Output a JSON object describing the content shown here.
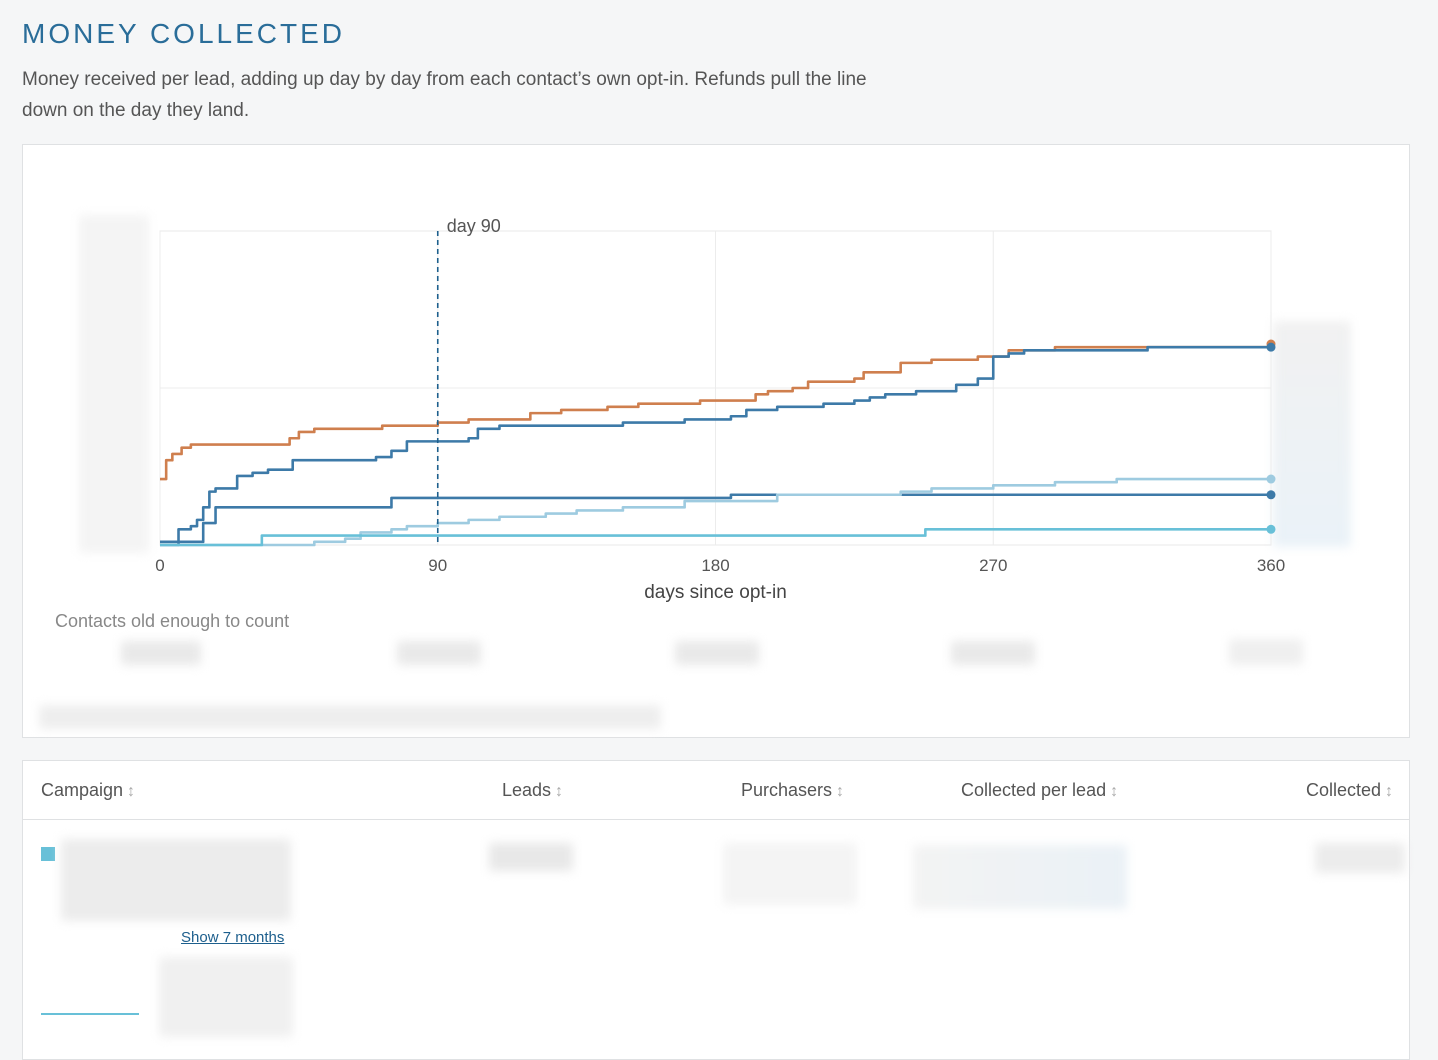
{
  "header": {
    "title": "MONEY COLLECTED",
    "description": "Money received per lead, adding up day by day from each contact’s own opt-in. Refunds pull the line down on the day they land."
  },
  "chart": {
    "marker_label": "day 90",
    "contacts_label": "Contacts old enough to count"
  },
  "colors": {
    "orange": "#cf7f4e",
    "blue": "#3d7aa8",
    "light_blue": "#9ecbe0",
    "cyan": "#68c0d8",
    "marker": "#1d5f8d"
  },
  "chart_data": {
    "type": "line",
    "xlabel": "days since opt-in",
    "ylabel": "",
    "xlim": [
      0,
      360
    ],
    "x_ticks": [
      0,
      90,
      180,
      270,
      360
    ],
    "ylim": [
      0,
      1
    ],
    "y_note": "y-axis tick labels are blurred/hidden; values given as fraction of the visible plot height",
    "grid": true,
    "vline": {
      "x": 90,
      "label": "day 90",
      "style": "dashed"
    },
    "series": [
      {
        "color": "orange",
        "points": [
          [
            0,
            0.21
          ],
          [
            2,
            0.27
          ],
          [
            4,
            0.29
          ],
          [
            7,
            0.31
          ],
          [
            10,
            0.32
          ],
          [
            20,
            0.32
          ],
          [
            40,
            0.32
          ],
          [
            42,
            0.34
          ],
          [
            45,
            0.36
          ],
          [
            50,
            0.37
          ],
          [
            70,
            0.37
          ],
          [
            72,
            0.38
          ],
          [
            90,
            0.39
          ],
          [
            100,
            0.4
          ],
          [
            120,
            0.42
          ],
          [
            130,
            0.43
          ],
          [
            145,
            0.44
          ],
          [
            155,
            0.45
          ],
          [
            175,
            0.46
          ],
          [
            190,
            0.46
          ],
          [
            193,
            0.48
          ],
          [
            197,
            0.49
          ],
          [
            205,
            0.5
          ],
          [
            210,
            0.52
          ],
          [
            225,
            0.53
          ],
          [
            228,
            0.55
          ],
          [
            240,
            0.58
          ],
          [
            250,
            0.59
          ],
          [
            265,
            0.6
          ],
          [
            275,
            0.62
          ],
          [
            290,
            0.63
          ],
          [
            360,
            0.64
          ]
        ]
      },
      {
        "color": "blue",
        "points": [
          [
            0,
            0
          ],
          [
            5,
            0
          ],
          [
            6,
            0.05
          ],
          [
            10,
            0.06
          ],
          [
            12,
            0.08
          ],
          [
            14,
            0.12
          ],
          [
            16,
            0.17
          ],
          [
            18,
            0.18
          ],
          [
            25,
            0.22
          ],
          [
            30,
            0.23
          ],
          [
            35,
            0.24
          ],
          [
            43,
            0.27
          ],
          [
            50,
            0.27
          ],
          [
            70,
            0.28
          ],
          [
            75,
            0.3
          ],
          [
            80,
            0.33
          ],
          [
            90,
            0.33
          ],
          [
            100,
            0.34
          ],
          [
            103,
            0.37
          ],
          [
            110,
            0.38
          ],
          [
            120,
            0.38
          ],
          [
            150,
            0.39
          ],
          [
            170,
            0.4
          ],
          [
            185,
            0.41
          ],
          [
            190,
            0.43
          ],
          [
            200,
            0.44
          ],
          [
            215,
            0.45
          ],
          [
            225,
            0.46
          ],
          [
            230,
            0.47
          ],
          [
            235,
            0.48
          ],
          [
            245,
            0.49
          ],
          [
            255,
            0.49
          ],
          [
            258,
            0.51
          ],
          [
            265,
            0.53
          ],
          [
            270,
            0.6
          ],
          [
            275,
            0.61
          ],
          [
            280,
            0.62
          ],
          [
            290,
            0.62
          ],
          [
            320,
            0.63
          ],
          [
            360,
            0.63
          ]
        ]
      },
      {
        "color": "blue",
        "points": [
          [
            0,
            0.01
          ],
          [
            12,
            0.01
          ],
          [
            14,
            0.07
          ],
          [
            18,
            0.12
          ],
          [
            40,
            0.12
          ],
          [
            60,
            0.12
          ],
          [
            75,
            0.15
          ],
          [
            185,
            0.16
          ],
          [
            270,
            0.16
          ],
          [
            360,
            0.16
          ]
        ]
      },
      {
        "color": "light_blue",
        "points": [
          [
            0,
            0
          ],
          [
            30,
            0
          ],
          [
            50,
            0.01
          ],
          [
            60,
            0.02
          ],
          [
            65,
            0.04
          ],
          [
            75,
            0.05
          ],
          [
            80,
            0.06
          ],
          [
            90,
            0.07
          ],
          [
            100,
            0.08
          ],
          [
            110,
            0.09
          ],
          [
            125,
            0.1
          ],
          [
            135,
            0.11
          ],
          [
            150,
            0.12
          ],
          [
            170,
            0.14
          ],
          [
            200,
            0.16
          ],
          [
            240,
            0.17
          ],
          [
            250,
            0.18
          ],
          [
            270,
            0.19
          ],
          [
            290,
            0.2
          ],
          [
            310,
            0.21
          ],
          [
            360,
            0.21
          ]
        ]
      },
      {
        "color": "cyan",
        "points": [
          [
            0,
            0
          ],
          [
            32,
            0
          ],
          [
            33,
            0.03
          ],
          [
            100,
            0.03
          ],
          [
            200,
            0.03
          ],
          [
            247,
            0.03
          ],
          [
            248,
            0.05
          ],
          [
            300,
            0.05
          ],
          [
            360,
            0.05
          ]
        ]
      }
    ]
  },
  "table": {
    "columns": [
      {
        "label": "Campaign",
        "sort": "↕"
      },
      {
        "label": "Leads",
        "sort": "↕"
      },
      {
        "label": "Purchasers",
        "sort": "↕"
      },
      {
        "label": "Collected per lead",
        "sort": "↕"
      },
      {
        "label": "Collected",
        "sort": "↕"
      }
    ],
    "row1": {
      "show_link": "Show 7 months"
    }
  }
}
